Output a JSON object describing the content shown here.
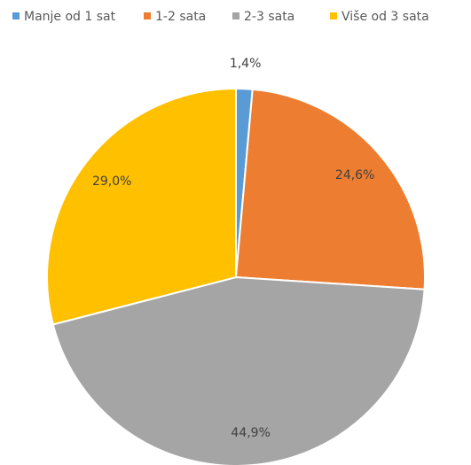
{
  "chart_data": {
    "type": "pie",
    "categories": [
      "Manje od 1 sat",
      "1-2 sata",
      "2-3 sata",
      "Više od 3 sata"
    ],
    "values": [
      1.4,
      24.6,
      44.9,
      29.0
    ],
    "value_labels": [
      "1,4%",
      "24,6%",
      "44,9%",
      "29,0%"
    ],
    "colors": [
      "#5b9bd5",
      "#ed7d31",
      "#a5a5a5",
      "#ffc000"
    ],
    "legend": "top"
  }
}
